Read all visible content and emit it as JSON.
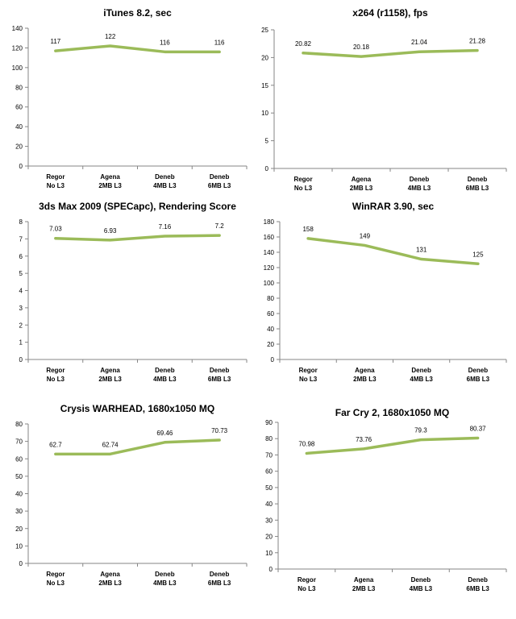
{
  "chart_data": [
    {
      "type": "line",
      "title": "iTunes 8.2, sec",
      "categories": [
        [
          "Regor",
          "No L3"
        ],
        [
          "Agena",
          "2MB L3"
        ],
        [
          "Deneb",
          "4MB L3"
        ],
        [
          "Deneb",
          "6MB L3"
        ]
      ],
      "values": [
        117,
        122,
        116,
        116
      ],
      "value_labels": [
        "117",
        "122",
        "116",
        "116"
      ],
      "ylim": [
        0,
        140
      ],
      "yticks": [
        "0",
        "20",
        "40",
        "60",
        "80",
        "100",
        "120",
        "140"
      ],
      "grid": false,
      "legend": "none",
      "color": "#9bbb59"
    },
    {
      "type": "line",
      "title": "x264 (r1158), fps",
      "categories": [
        [
          "Regor",
          "No L3"
        ],
        [
          "Agena",
          "2MB L3"
        ],
        [
          "Deneb",
          "4MB L3"
        ],
        [
          "Deneb",
          "6MB L3"
        ]
      ],
      "values": [
        20.82,
        20.18,
        21.04,
        21.28
      ],
      "value_labels": [
        "20.82",
        "20.18",
        "21.04",
        "21.28"
      ],
      "ylim": [
        0,
        25
      ],
      "yticks": [
        "0",
        "5",
        "10",
        "15",
        "20",
        "25"
      ],
      "grid": false,
      "legend": "none",
      "color": "#9bbb59"
    },
    {
      "type": "line",
      "title": "3ds Max 2009 (SPECapc), Rendering Score",
      "categories": [
        [
          "Regor",
          "No L3"
        ],
        [
          "Agena",
          "2MB L3"
        ],
        [
          "Deneb",
          "4MB L3"
        ],
        [
          "Deneb",
          "6MB L3"
        ]
      ],
      "values": [
        7.03,
        6.93,
        7.16,
        7.2
      ],
      "value_labels": [
        "7.03",
        "6.93",
        "7.16",
        "7.2"
      ],
      "ylim": [
        0,
        8
      ],
      "yticks": [
        "0",
        "1",
        "2",
        "3",
        "4",
        "5",
        "6",
        "7",
        "8"
      ],
      "grid": false,
      "legend": "none",
      "color": "#9bbb59"
    },
    {
      "type": "line",
      "title": "WinRAR 3.90, sec",
      "categories": [
        [
          "Regor",
          "No L3"
        ],
        [
          "Agena",
          "2MB L3"
        ],
        [
          "Deneb",
          "4MB L3"
        ],
        [
          "Deneb",
          "6MB L3"
        ]
      ],
      "values": [
        158,
        149,
        131,
        125
      ],
      "value_labels": [
        "158",
        "149",
        "131",
        "125"
      ],
      "ylim": [
        0,
        180
      ],
      "yticks": [
        "0",
        "20",
        "40",
        "60",
        "80",
        "100",
        "120",
        "140",
        "160",
        "180"
      ],
      "grid": false,
      "legend": "none",
      "color": "#9bbb59"
    },
    {
      "type": "line",
      "title": "Crysis WARHEAD, 1680x1050 MQ",
      "categories": [
        [
          "Regor",
          "No L3"
        ],
        [
          "Agena",
          "2MB L3"
        ],
        [
          "Deneb",
          "4MB L3"
        ],
        [
          "Deneb",
          "6MB L3"
        ]
      ],
      "values": [
        62.7,
        62.74,
        69.46,
        70.73
      ],
      "value_labels": [
        "62.7",
        "62.74",
        "69.46",
        "70.73"
      ],
      "ylim": [
        0,
        80
      ],
      "yticks": [
        "0",
        "10",
        "20",
        "30",
        "40",
        "50",
        "60",
        "70",
        "80"
      ],
      "grid": false,
      "legend": "none",
      "color": "#9bbb59"
    },
    {
      "type": "line",
      "title": "Far Cry 2, 1680x1050 MQ",
      "categories": [
        [
          "Regor",
          "No L3"
        ],
        [
          "Agena",
          "2MB L3"
        ],
        [
          "Deneb",
          "4MB L3"
        ],
        [
          "Deneb",
          "6MB L3"
        ]
      ],
      "values": [
        70.98,
        73.76,
        79.3,
        80.37
      ],
      "value_labels": [
        "70.98",
        "73.76",
        "79.3",
        "80.37"
      ],
      "ylim": [
        0,
        90
      ],
      "yticks": [
        "0",
        "10",
        "20",
        "30",
        "40",
        "50",
        "60",
        "70",
        "80",
        "90"
      ],
      "grid": false,
      "legend": "none",
      "color": "#9bbb59"
    }
  ]
}
